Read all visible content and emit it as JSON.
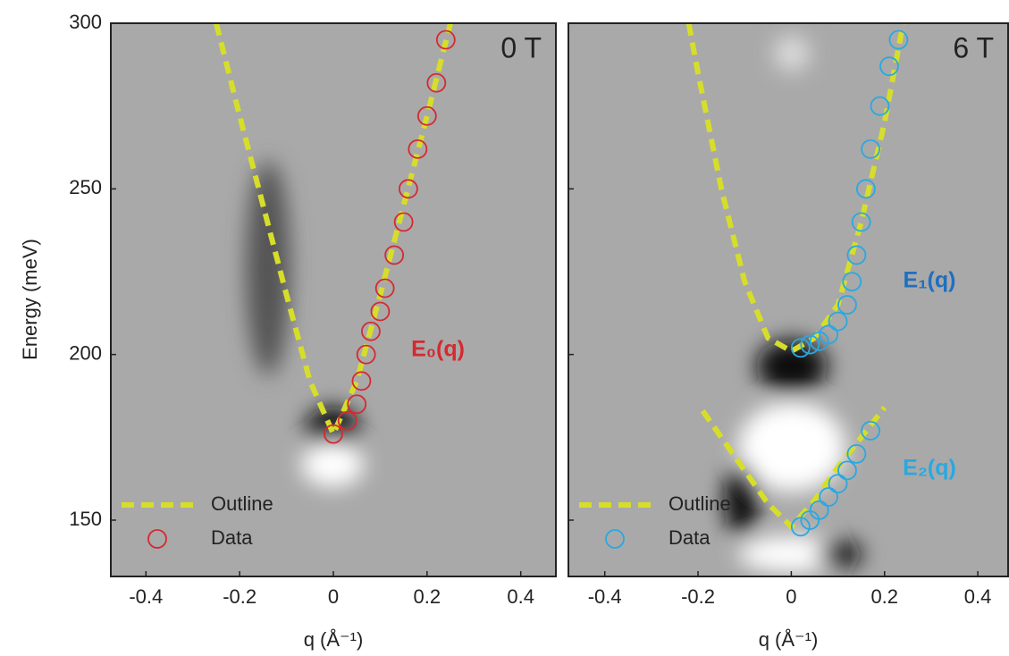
{
  "chart_data": [
    {
      "type": "scatter",
      "title": "0 T",
      "xlabel": "q (Å⁻¹)",
      "ylabel": "Energy (meV)",
      "xlim": [
        -0.475,
        0.475
      ],
      "ylim": [
        133,
        300
      ],
      "xticks": [
        -0.4,
        -0.2,
        0,
        0.2,
        0.4
      ],
      "yticks": [
        150,
        200,
        250,
        300
      ],
      "show_ytick_labels": true,
      "legend": "lower left",
      "series": [
        {
          "name": "Outline",
          "style": "dashed-line",
          "color": "#d6de2a",
          "x": [
            -0.25,
            -0.2,
            -0.15,
            -0.1,
            -0.05,
            0,
            0.05,
            0.1,
            0.15,
            0.2,
            0.25
          ],
          "values": [
            300,
            272,
            245,
            218,
            192,
            176,
            192,
            218,
            245,
            272,
            300
          ]
        },
        {
          "name": "Data",
          "style": "circle",
          "color": "#d42a30",
          "x": [
            0,
            0.03,
            0.05,
            0.06,
            0.07,
            0.08,
            0.1,
            0.11,
            0.13,
            0.15,
            0.16,
            0.18,
            0.2,
            0.22,
            0.24
          ],
          "values": [
            176,
            180,
            185,
            192,
            200,
            207,
            213,
            220,
            230,
            240,
            250,
            262,
            272,
            282,
            295
          ]
        }
      ],
      "annotations": [
        {
          "text": "E₀(q)",
          "color": "#d42a30"
        }
      ]
    },
    {
      "type": "scatter",
      "title": "6 T",
      "xlabel": "q (Å⁻¹)",
      "xlim": [
        -0.478,
        0.465
      ],
      "ylim": [
        133,
        300
      ],
      "xticks": [
        -0.4,
        -0.2,
        0,
        0.2,
        0.4
      ],
      "yticks": [
        150,
        200,
        250,
        300
      ],
      "show_ytick_labels": false,
      "legend": "lower left",
      "series": [
        {
          "name": "Outline",
          "style": "dashed-line",
          "color": "#d6de2a",
          "x": [
            -0.22,
            -0.2,
            -0.15,
            -0.1,
            -0.05,
            0,
            0.05,
            0.1,
            0.15,
            0.2,
            0.24,
            null,
            -0.19,
            -0.1,
            -0.05,
            0,
            0.05,
            0.1,
            0.2
          ],
          "values": [
            300,
            285,
            250,
            222,
            205,
            201,
            205,
            215,
            240,
            270,
            300,
            null,
            183,
            165,
            155,
            148,
            156,
            166,
            184
          ]
        },
        {
          "name": "Data",
          "style": "circle",
          "color": "#2aa8e0",
          "x": [
            0.02,
            0.04,
            0.06,
            0.08,
            0.1,
            0.12,
            0.13,
            0.14,
            0.15,
            0.16,
            0.17,
            0.19,
            0.21,
            0.23,
            0.02,
            0.04,
            0.06,
            0.08,
            0.1,
            0.12,
            0.14,
            0.17
          ],
          "values": [
            202,
            203,
            204,
            206,
            210,
            215,
            222,
            230,
            240,
            250,
            262,
            275,
            287,
            295,
            148,
            150,
            153,
            157,
            161,
            165,
            170,
            177
          ]
        }
      ],
      "annotations": [
        {
          "text": "E₁(q)",
          "color": "#1f6fc0"
        },
        {
          "text": "E₂(q)",
          "color": "#2aa8e0"
        }
      ]
    }
  ]
}
